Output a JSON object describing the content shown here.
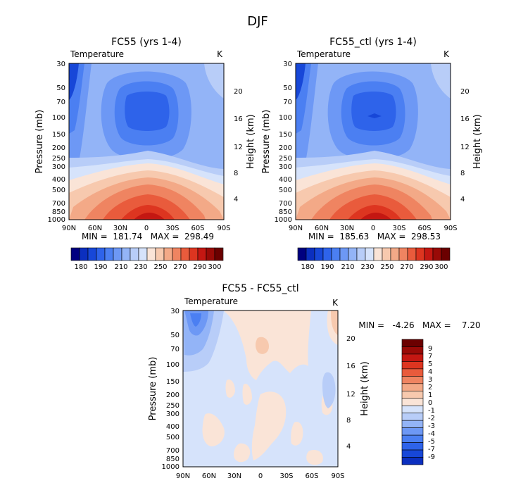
{
  "figure": {
    "title": "DJF",
    "colors": {
      "diverging": [
        "#000080",
        "#0b2fbf",
        "#1747d8",
        "#2e63ea",
        "#4b7ff2",
        "#6d98f5",
        "#93b4f7",
        "#b8cdf8",
        "#d6e3fb",
        "#fae4d7",
        "#f7c9ae",
        "#f3a987",
        "#ef8461",
        "#e95b3c",
        "#dd3520",
        "#c41712",
        "#990a07",
        "#6b0000"
      ]
    },
    "panels": [
      {
        "id": "a",
        "title": "FC55 (yrs 1-4)",
        "var_label": "Temperature",
        "unit": "K",
        "minmax": "MIN =  181.74   MAX =  298.49",
        "ylabel": "Pressure (mb)",
        "y2label": "Height (km)",
        "pressure_ticks": [
          "30",
          "50",
          "70",
          "100",
          "150",
          "200",
          "250",
          "300",
          "400",
          "500",
          "700",
          "850",
          "1000"
        ],
        "height_ticks": [
          "20",
          "16",
          "12",
          "8",
          "4"
        ],
        "lat_ticks": [
          "90N",
          "60N",
          "30N",
          "0",
          "30S",
          "60S",
          "90S"
        ],
        "colorbar_labels": [
          "180",
          "190",
          "210",
          "230",
          "250",
          "270",
          "290",
          "300"
        ]
      },
      {
        "id": "b",
        "title": "FC55_ctl (yrs 1-4)",
        "var_label": "Temperature",
        "unit": "K",
        "minmax": "MIN =  185.63   MAX =  298.53",
        "ylabel": "Pressure (mb)",
        "y2label": "Height (km)",
        "pressure_ticks": [
          "30",
          "50",
          "70",
          "100",
          "150",
          "200",
          "250",
          "300",
          "400",
          "500",
          "700",
          "850",
          "1000"
        ],
        "height_ticks": [
          "20",
          "16",
          "12",
          "8",
          "4"
        ],
        "lat_ticks": [
          "90N",
          "60N",
          "30N",
          "0",
          "30S",
          "60S",
          "90S"
        ],
        "colorbar_labels": [
          "180",
          "190",
          "210",
          "230",
          "250",
          "270",
          "290",
          "300"
        ]
      },
      {
        "id": "c",
        "title": "FC55 - FC55_ctl",
        "var_label": "Temperature",
        "unit": "K",
        "minmax": "MIN =   -4.26   MAX =    7.20",
        "ylabel": "Pressure (mb)",
        "y2label": "Height (km)",
        "pressure_ticks": [
          "30",
          "50",
          "70",
          "100",
          "150",
          "200",
          "250",
          "300",
          "400",
          "500",
          "700",
          "850",
          "1000"
        ],
        "height_ticks": [
          "20",
          "16",
          "12",
          "8",
          "4"
        ],
        "lat_ticks": [
          "90N",
          "60N",
          "30N",
          "0",
          "30S",
          "60S",
          "90S"
        ],
        "colorbar_labels": [
          "9",
          "7",
          "5",
          "4",
          "3",
          "2",
          "1",
          "0",
          "-1",
          "-2",
          "-3",
          "-4",
          "-5",
          "-7",
          "-9"
        ]
      }
    ]
  },
  "chart_data": [
    {
      "type": "heatmap",
      "title": "FC55 (yrs 1-4)",
      "variable": "Temperature",
      "unit": "K",
      "x": "latitude",
      "x_ticks": [
        "90N",
        "60N",
        "30N",
        "0",
        "30S",
        "60S",
        "90S"
      ],
      "ylabel": "Pressure (mb)",
      "y_ticks": [
        30,
        50,
        70,
        100,
        150,
        200,
        250,
        300,
        400,
        500,
        700,
        850,
        1000
      ],
      "y_scale": "log",
      "y_reversed": true,
      "y2label": "Height (km)",
      "y2_ticks": [
        4,
        8,
        12,
        16,
        20
      ],
      "min": 181.74,
      "max": 298.49,
      "contour_levels": [
        180,
        190,
        200,
        210,
        220,
        230,
        240,
        250,
        260,
        270,
        280,
        290,
        300
      ]
    },
    {
      "type": "heatmap",
      "title": "FC55_ctl (yrs 1-4)",
      "variable": "Temperature",
      "unit": "K",
      "x": "latitude",
      "x_ticks": [
        "90N",
        "60N",
        "30N",
        "0",
        "30S",
        "60S",
        "90S"
      ],
      "ylabel": "Pressure (mb)",
      "y_ticks": [
        30,
        50,
        70,
        100,
        150,
        200,
        250,
        300,
        400,
        500,
        700,
        850,
        1000
      ],
      "y_scale": "log",
      "y_reversed": true,
      "y2label": "Height (km)",
      "y2_ticks": [
        4,
        8,
        12,
        16,
        20
      ],
      "min": 185.63,
      "max": 298.53,
      "contour_levels": [
        180,
        190,
        200,
        210,
        220,
        230,
        240,
        250,
        260,
        270,
        280,
        290,
        300
      ]
    },
    {
      "type": "heatmap",
      "title": "FC55 - FC55_ctl",
      "variable": "Temperature",
      "unit": "K",
      "x": "latitude",
      "x_ticks": [
        "90N",
        "60N",
        "30N",
        "0",
        "30S",
        "60S",
        "90S"
      ],
      "ylabel": "Pressure (mb)",
      "y_ticks": [
        30,
        50,
        70,
        100,
        150,
        200,
        250,
        300,
        400,
        500,
        700,
        850,
        1000
      ],
      "y_scale": "log",
      "y_reversed": true,
      "y2label": "Height (km)",
      "y2_ticks": [
        4,
        8,
        12,
        16,
        20
      ],
      "min": -4.26,
      "max": 7.2,
      "contour_levels": [
        -9,
        -7,
        -5,
        -4,
        -3,
        -2,
        -1,
        0,
        1,
        2,
        3,
        4,
        5,
        7,
        9
      ]
    }
  ]
}
